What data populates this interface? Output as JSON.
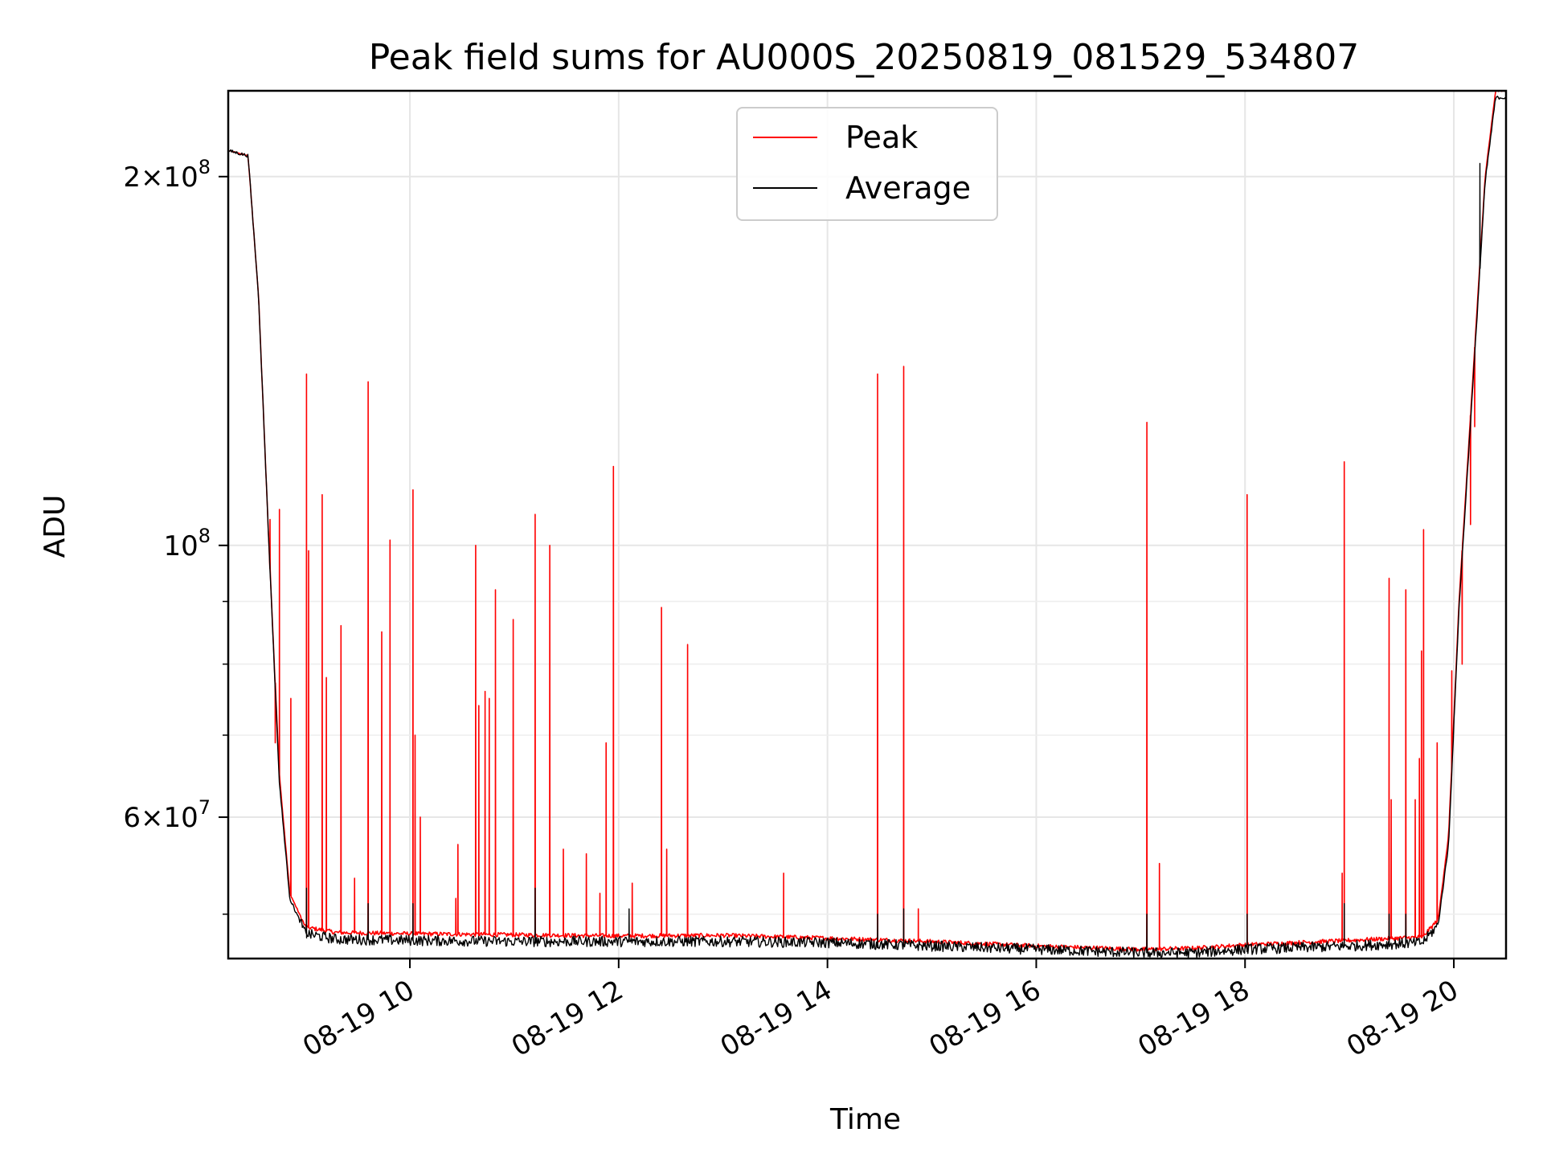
{
  "chart_data": {
    "type": "line",
    "title": "Peak field sums for AU000S_20250819_081529_534807",
    "xlabel": "Time",
    "ylabel": "ADU",
    "x_unit": "hour of 2025-08-19",
    "xlim": [
      8.26,
      20.5
    ],
    "ylim": [
      46000000,
      235000000
    ],
    "y_scale": "log",
    "grid": true,
    "legend_position": "top-center",
    "x_ticks": [
      {
        "value": 10,
        "label": "08-19 10"
      },
      {
        "value": 12,
        "label": "08-19 12"
      },
      {
        "value": 14,
        "label": "08-19 14"
      },
      {
        "value": 16,
        "label": "08-19 16"
      },
      {
        "value": 18,
        "label": "08-19 18"
      },
      {
        "value": 20,
        "label": "08-19 20"
      }
    ],
    "y_ticks": [
      {
        "value": 200000000,
        "mantissa": "2",
        "exp": "8"
      },
      {
        "value": 100000000,
        "mantissa": "",
        "exp": "8"
      },
      {
        "value": 60000000,
        "mantissa": "6",
        "exp": "7"
      }
    ],
    "y_minor_ticks": [
      50000000,
      70000000,
      80000000,
      90000000
    ],
    "series": [
      {
        "name": "Peak",
        "color": "#ff0000",
        "baseline": [
          [
            8.26,
            210000000
          ],
          [
            8.45,
            208000000
          ],
          [
            8.55,
            160000000
          ],
          [
            8.65,
            100000000
          ],
          [
            8.75,
            65000000
          ],
          [
            8.85,
            52000000
          ],
          [
            9.0,
            48800000
          ],
          [
            9.3,
            48300000
          ],
          [
            10.0,
            48200000
          ],
          [
            11.0,
            48100000
          ],
          [
            12.0,
            48000000
          ],
          [
            13.0,
            48050000
          ],
          [
            14.0,
            47800000
          ],
          [
            15.0,
            47500000
          ],
          [
            16.0,
            47100000
          ],
          [
            17.0,
            46800000
          ],
          [
            17.5,
            46900000
          ],
          [
            18.0,
            47200000
          ],
          [
            19.0,
            47600000
          ],
          [
            19.7,
            47900000
          ],
          [
            19.85,
            49500000
          ],
          [
            19.95,
            58000000
          ],
          [
            20.05,
            90000000
          ],
          [
            20.2,
            145000000
          ],
          [
            20.3,
            200000000
          ],
          [
            20.4,
            235000000
          ]
        ],
        "spikes": [
          [
            8.66,
            105000000
          ],
          [
            8.75,
            107000000
          ],
          [
            8.71,
            69000000
          ],
          [
            8.86,
            75000000
          ],
          [
            9.01,
            138000000
          ],
          [
            9.03,
            99000000
          ],
          [
            9.16,
            110000000
          ],
          [
            9.2,
            78000000
          ],
          [
            9.34,
            86000000
          ],
          [
            9.47,
            53500000
          ],
          [
            9.6,
            136000000
          ],
          [
            9.73,
            85000000
          ],
          [
            9.81,
            101000000
          ],
          [
            10.03,
            111000000
          ],
          [
            10.05,
            70000000
          ],
          [
            10.1,
            60000000
          ],
          [
            10.44,
            51500000
          ],
          [
            10.46,
            57000000
          ],
          [
            10.63,
            100000000
          ],
          [
            10.66,
            74000000
          ],
          [
            10.72,
            76000000
          ],
          [
            10.76,
            75000000
          ],
          [
            10.82,
            92000000
          ],
          [
            10.99,
            87000000
          ],
          [
            11.2,
            106000000
          ],
          [
            11.34,
            100000000
          ],
          [
            11.47,
            56500000
          ],
          [
            11.69,
            56000000
          ],
          [
            11.82,
            52000000
          ],
          [
            11.88,
            69000000
          ],
          [
            11.95,
            116000000
          ],
          [
            12.13,
            53000000
          ],
          [
            12.41,
            89000000
          ],
          [
            12.46,
            56500000
          ],
          [
            12.66,
            83000000
          ],
          [
            13.58,
            54000000
          ],
          [
            14.48,
            138000000
          ],
          [
            14.73,
            140000000
          ],
          [
            14.87,
            50500000
          ],
          [
            17.06,
            126000000
          ],
          [
            17.18,
            55000000
          ],
          [
            18.02,
            110000000
          ],
          [
            18.95,
            117000000
          ],
          [
            18.93,
            54000000
          ],
          [
            19.38,
            94000000
          ],
          [
            19.38,
            61000000
          ],
          [
            19.4,
            62000000
          ],
          [
            19.54,
            92000000
          ],
          [
            19.63,
            62000000
          ],
          [
            19.67,
            67000000
          ],
          [
            19.69,
            82000000
          ],
          [
            19.71,
            103000000
          ],
          [
            19.84,
            69000000
          ],
          [
            19.98,
            79000000
          ],
          [
            20.08,
            80000000
          ],
          [
            20.16,
            104000000
          ],
          [
            20.2,
            125000000
          ]
        ]
      },
      {
        "name": "Average",
        "color": "#000000",
        "baseline": [
          [
            8.26,
            210000000
          ],
          [
            8.45,
            208000000
          ],
          [
            8.55,
            160000000
          ],
          [
            8.65,
            100000000
          ],
          [
            8.75,
            64000000
          ],
          [
            8.85,
            51500000
          ],
          [
            9.0,
            48200000
          ],
          [
            9.3,
            47700000
          ],
          [
            10.0,
            47600000
          ],
          [
            11.0,
            47500000
          ],
          [
            12.0,
            47500000
          ],
          [
            13.0,
            47500000
          ],
          [
            14.0,
            47400000
          ],
          [
            15.0,
            47100000
          ],
          [
            16.0,
            46800000
          ],
          [
            17.0,
            46500000
          ],
          [
            17.5,
            46500000
          ],
          [
            18.0,
            46800000
          ],
          [
            19.0,
            47100000
          ],
          [
            19.7,
            47400000
          ],
          [
            19.85,
            49000000
          ],
          [
            19.95,
            57000000
          ],
          [
            20.05,
            89000000
          ],
          [
            20.2,
            143000000
          ],
          [
            20.3,
            198000000
          ],
          [
            20.4,
            232000000
          ]
        ],
        "spikes": [
          [
            9.01,
            52500000
          ],
          [
            9.6,
            51000000
          ],
          [
            10.03,
            51000000
          ],
          [
            11.2,
            52500000
          ],
          [
            12.1,
            50500000
          ],
          [
            14.48,
            50000000
          ],
          [
            14.73,
            50500000
          ],
          [
            17.06,
            50000000
          ],
          [
            18.02,
            50000000
          ],
          [
            18.95,
            51000000
          ],
          [
            19.38,
            50000000
          ],
          [
            19.54,
            50000000
          ],
          [
            20.25,
            205000000
          ]
        ]
      }
    ]
  }
}
